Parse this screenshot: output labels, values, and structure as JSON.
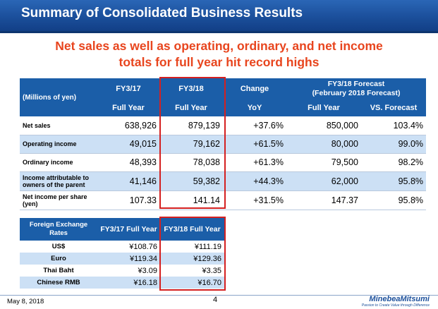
{
  "header": {
    "title": "Summary of Consolidated Business Results"
  },
  "subtitle": {
    "line1": "Net sales as well as operating, ordinary, and net income",
    "line2": "totals for full year hit record highs"
  },
  "main_table": {
    "unit_label": "(Millions of yen)",
    "columns": [
      {
        "top": "FY3/17",
        "bottom": "Full Year"
      },
      {
        "top": "FY3/18",
        "bottom": "Full Year"
      },
      {
        "top": "Change",
        "bottom": "YoY"
      }
    ],
    "forecast": {
      "top1": "FY3/18 Forecast",
      "top2": "(February 2018 Forecast)",
      "sub": [
        "Full Year",
        "VS. Forecast"
      ]
    },
    "rows": [
      {
        "label": "Net sales",
        "values": [
          "638,926",
          "879,139",
          "+37.6%",
          "850,000",
          "103.4%"
        ]
      },
      {
        "label": "Operating income",
        "values": [
          "49,015",
          "79,162",
          "+61.5%",
          "80,000",
          "99.0%"
        ]
      },
      {
        "label": "Ordinary income",
        "values": [
          "48,393",
          "78,038",
          "+61.3%",
          "79,500",
          "98.2%"
        ]
      },
      {
        "label": "Income attributable to owners of the parent",
        "values": [
          "41,146",
          "59,382",
          "+44.3%",
          "62,000",
          "95.8%"
        ]
      },
      {
        "label": "Net income per share (yen)",
        "values": [
          "107.33",
          "141.14",
          "+31.5%",
          "147.37",
          "95.8%"
        ]
      }
    ]
  },
  "fx_table": {
    "header": [
      "Foreign Exchange Rates",
      "FY3/17 Full Year",
      "FY3/18 Full Year"
    ],
    "rows": [
      {
        "label": "US$",
        "values": [
          "¥108.76",
          "¥111.19"
        ]
      },
      {
        "label": "Euro",
        "values": [
          "¥119.34",
          "¥129.36"
        ]
      },
      {
        "label": "Thai Baht",
        "values": [
          "¥3.09",
          "¥3.35"
        ]
      },
      {
        "label": "Chinese RMB",
        "values": [
          "¥16.18",
          "¥16.70"
        ]
      }
    ]
  },
  "footer": {
    "date": "May 8, 2018",
    "page": "4",
    "logo": "MinebeaMitsumi",
    "tagline": "Passion to Create Value through Difference"
  }
}
